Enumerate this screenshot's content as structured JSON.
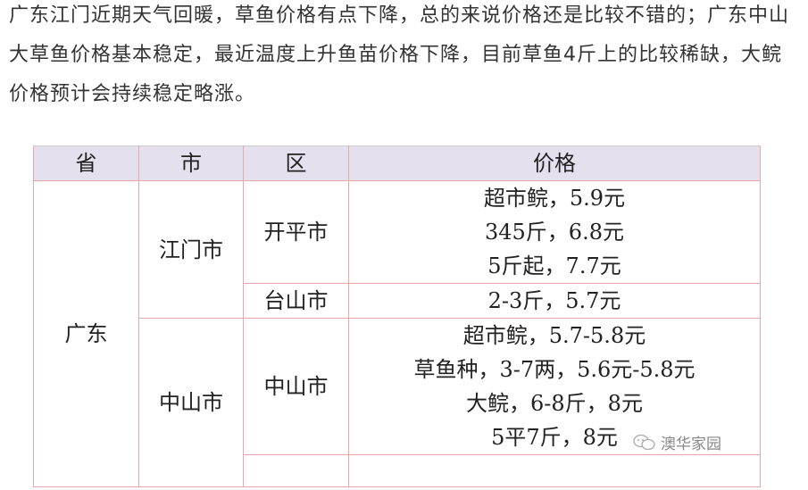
{
  "paragraph": "广东江门近期天气回暖，草鱼价格有点下降，总的来说价格还是比较不错的；广东中山大草鱼价格基本稳定，最近温度上升鱼苗价格下降，目前草鱼4斤上的比较稀缺，大鲩价格预计会持续稳定略涨。",
  "table": {
    "headers": [
      "省",
      "市",
      "区",
      "价格"
    ],
    "province": "广东",
    "cities": [
      {
        "name": "江门市",
        "districts": [
          {
            "name": "开平市",
            "prices": [
              "超市鲩，5.9元",
              "345斤，6.8元",
              "5斤起，7.7元"
            ]
          },
          {
            "name": "台山市",
            "prices": [
              "2-3斤，5.7元"
            ]
          }
        ]
      },
      {
        "name": "中山市",
        "districts": [
          {
            "name": "中山市",
            "prices": [
              "超市鲩，5.7-5.8元",
              "草鱼种，3-7两，5.6元-5.8元",
              "大鲩，6-8斤，8元",
              "5平7斤，8元"
            ]
          }
        ]
      }
    ]
  },
  "watermark": {
    "icon": "wechat-icon",
    "text": "澳华家园"
  }
}
